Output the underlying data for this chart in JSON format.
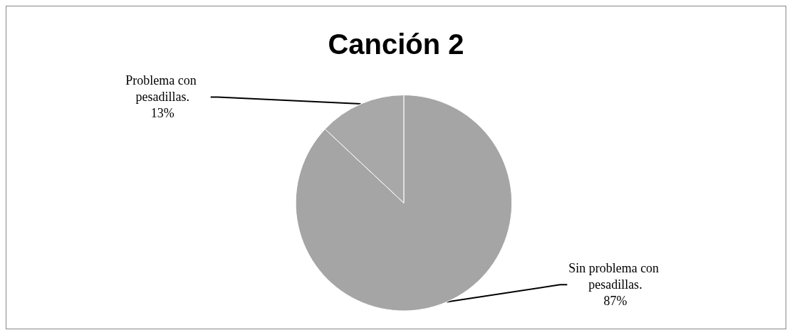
{
  "chart_data": {
    "type": "pie",
    "title": "Canción 2",
    "categories": [
      "Sin problema con pesadillas.",
      "Problema con pesadillas."
    ],
    "values": [
      87,
      13
    ],
    "value_labels": [
      "87%",
      "13%"
    ],
    "colors": [
      "#a5a5a5",
      "#a8a8a8"
    ],
    "legend": false
  }
}
